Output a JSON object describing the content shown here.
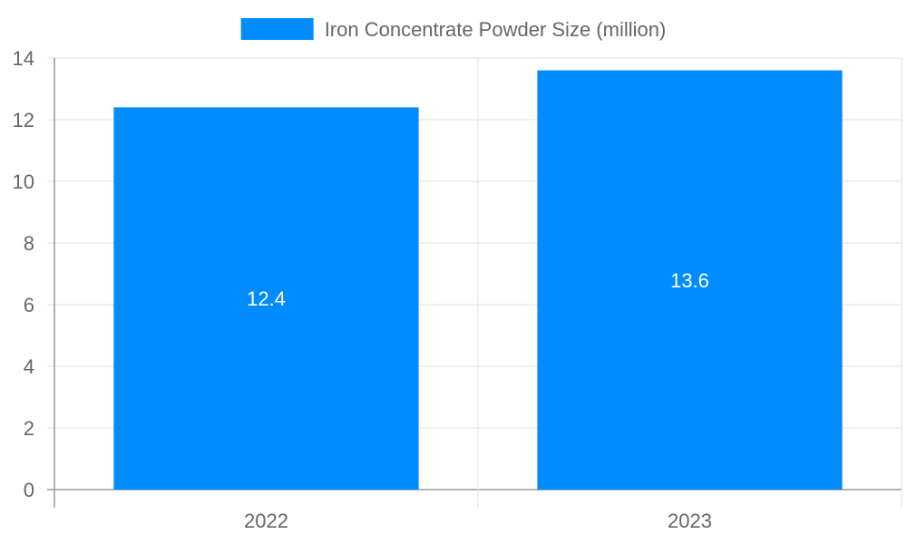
{
  "chart_data": {
    "type": "bar",
    "categories": [
      "2022",
      "2023"
    ],
    "series": [
      {
        "name": "Iron Concentrate Powder Size (million)",
        "values": [
          12.4,
          13.6
        ],
        "color": "#008cff"
      }
    ],
    "data_labels": [
      "12.4",
      "13.6"
    ],
    "ylim": [
      0,
      14
    ],
    "y_ticks": [
      0,
      2,
      4,
      6,
      8,
      10,
      12,
      14
    ],
    "grid": true,
    "legend_position": "top",
    "colors": {
      "grid": "#e0e0e0",
      "axis": "#999999",
      "text": "#666666",
      "data_label": "#ffffff"
    }
  }
}
